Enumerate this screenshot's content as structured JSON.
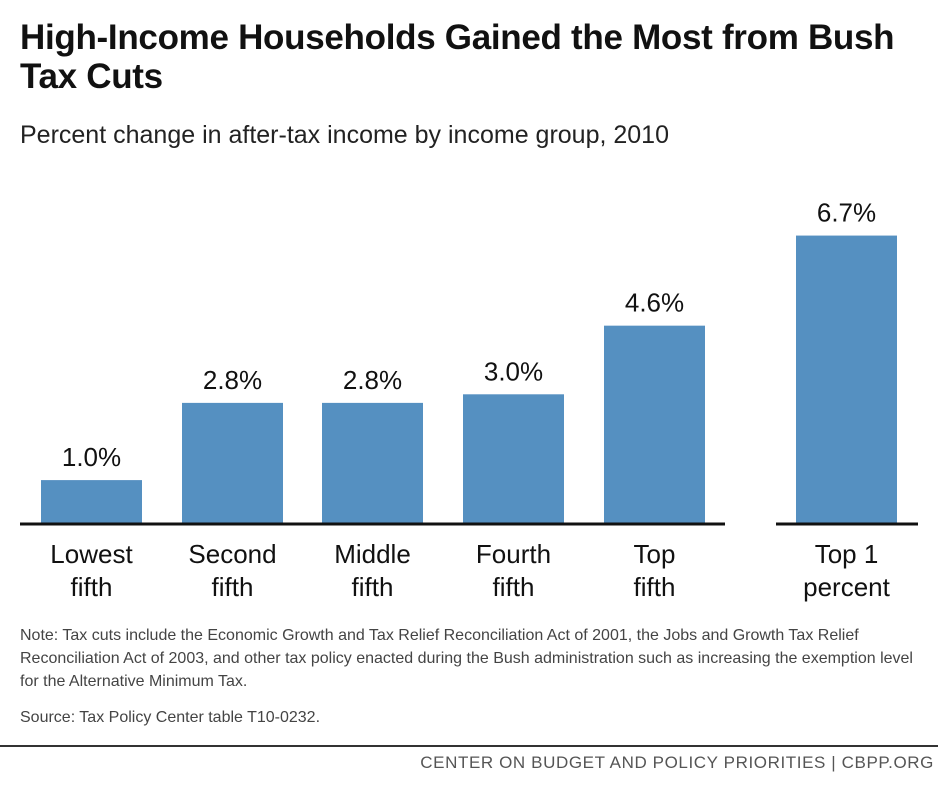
{
  "title": "High-Income Households Gained the Most from Bush Tax Cuts",
  "subtitle": "Percent change in after-tax income by income group, 2010",
  "bar_color": "#5590c1",
  "chart_data": {
    "type": "bar",
    "title": "High-Income Households Gained the Most from Bush Tax Cuts",
    "subtitle": "Percent change in after-tax income by income group, 2010",
    "categories": [
      [
        "Lowest",
        "fifth"
      ],
      [
        "Second",
        "fifth"
      ],
      [
        "Middle",
        "fifth"
      ],
      [
        "Fourth",
        "fifth"
      ],
      [
        "Top",
        "fifth"
      ],
      [
        "Top 1",
        "percent"
      ]
    ],
    "values": [
      1.0,
      2.8,
      2.8,
      3.0,
      4.6,
      6.7
    ],
    "data_labels": [
      "1.0%",
      "2.8%",
      "2.8%",
      "3.0%",
      "4.6%",
      "6.7%"
    ],
    "ylim": [
      0,
      7
    ],
    "grid": false,
    "legend": "none"
  },
  "note": "Note: Tax cuts include the Economic Growth and Tax Relief Reconciliation Act of 2001, the Jobs and Growth Tax Relief Reconciliation Act of 2003, and other tax policy enacted during the Bush administration such as increasing the exemption level for the Alternative Minimum Tax.",
  "source": "Source: Tax Policy Center table T10-0232.",
  "footer": "CENTER ON BUDGET AND POLICY PRIORITIES | CBPP.ORG"
}
